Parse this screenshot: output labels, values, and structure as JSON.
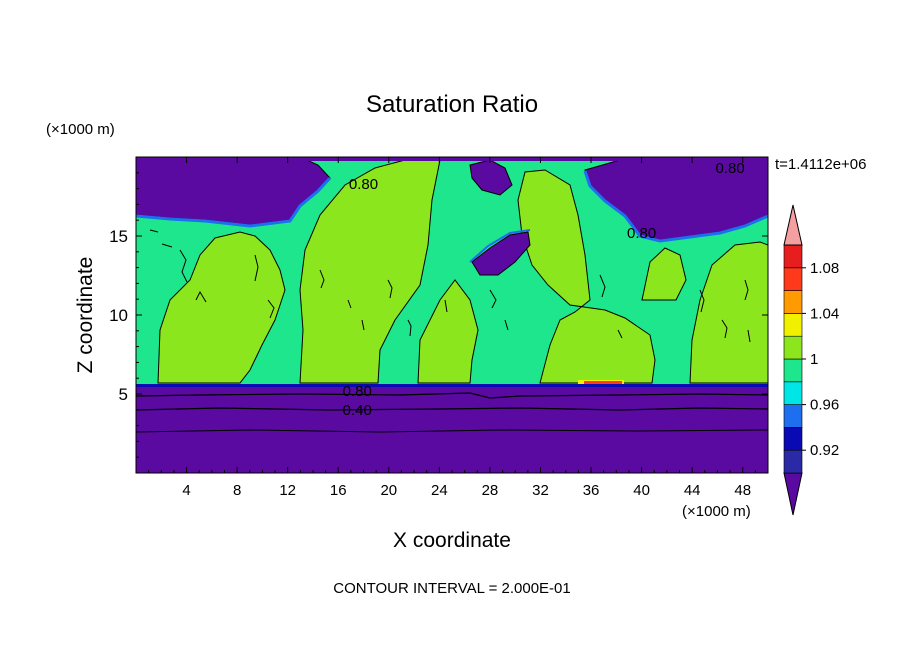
{
  "chart_data": {
    "type": "heatmap",
    "title": "Saturation Ratio",
    "xlabel": "X coordinate",
    "ylabel": "Z coordinate",
    "x_unit": "(×1000 m)",
    "y_unit": "(×1000 m)",
    "time_label": "t=1.4112e+06",
    "footer": "CONTOUR INTERVAL = 2.000E-01",
    "xlim": [
      0,
      50
    ],
    "ylim": [
      0,
      20
    ],
    "x_ticks": [
      4,
      8,
      12,
      16,
      20,
      24,
      28,
      32,
      36,
      40,
      44,
      48
    ],
    "y_ticks": [
      5,
      10,
      15
    ],
    "colorbar_labels": [
      "0.92",
      "0.96",
      "1",
      "1.04",
      "1.08"
    ],
    "colorbar_levels": [
      0.92,
      0.94,
      0.96,
      0.98,
      1.0,
      1.02,
      1.04,
      1.06,
      1.08,
      1.1
    ],
    "colorbar_colors": [
      "#5a0aa0",
      "#2a2aa6",
      "#0a0ab4",
      "#1e6ef0",
      "#00e6e6",
      "#1ee68c",
      "#8ce61e",
      "#f0f000",
      "#ff9a00",
      "#ff3a1a",
      "#e61e1e",
      "#f5a0a0"
    ],
    "contour_labels": [
      {
        "text": "0.80",
        "x": 18,
        "y": 18.3
      },
      {
        "text": "0.80",
        "x": 40,
        "y": 15.2
      },
      {
        "text": "0.80",
        "x": 47,
        "y": 19.3
      },
      {
        "text": "0.80",
        "x": 17.5,
        "y": 5.2
      },
      {
        "text": "0.40",
        "x": 17.5,
        "y": 4.0
      }
    ],
    "regions": {
      "lower_layer_top_z": 5.5,
      "upper_dry_region_z": [
        16,
        20
      ],
      "mid_layer": "values near 1.0 (green/lime) between z=5.5 and z=16"
    }
  }
}
